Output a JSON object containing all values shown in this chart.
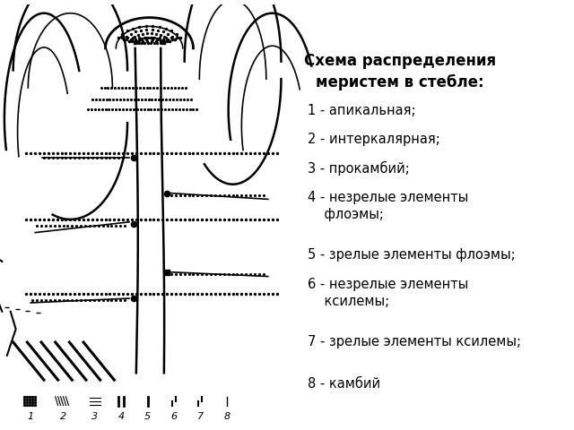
{
  "title": "Схема распределения\nмеристем в стебле:",
  "legend_items": [
    "1 - апикальная;",
    "2 - интеркалярная;",
    "3 - прокамбий;",
    "4 - незрелые элементы\n    флоэмы;",
    "5 - зрелые элементы флоэмы;",
    "6 - незрелые элементы\n    ксилемы;",
    "7 - зрелые элементы ксилемы;",
    "",
    "8 - камбий"
  ],
  "bg_color": "#ffffff",
  "text_color": "#000000",
  "title_fontsize": 12,
  "legend_fontsize": 10.5,
  "fig_width": 6.4,
  "fig_height": 4.8
}
